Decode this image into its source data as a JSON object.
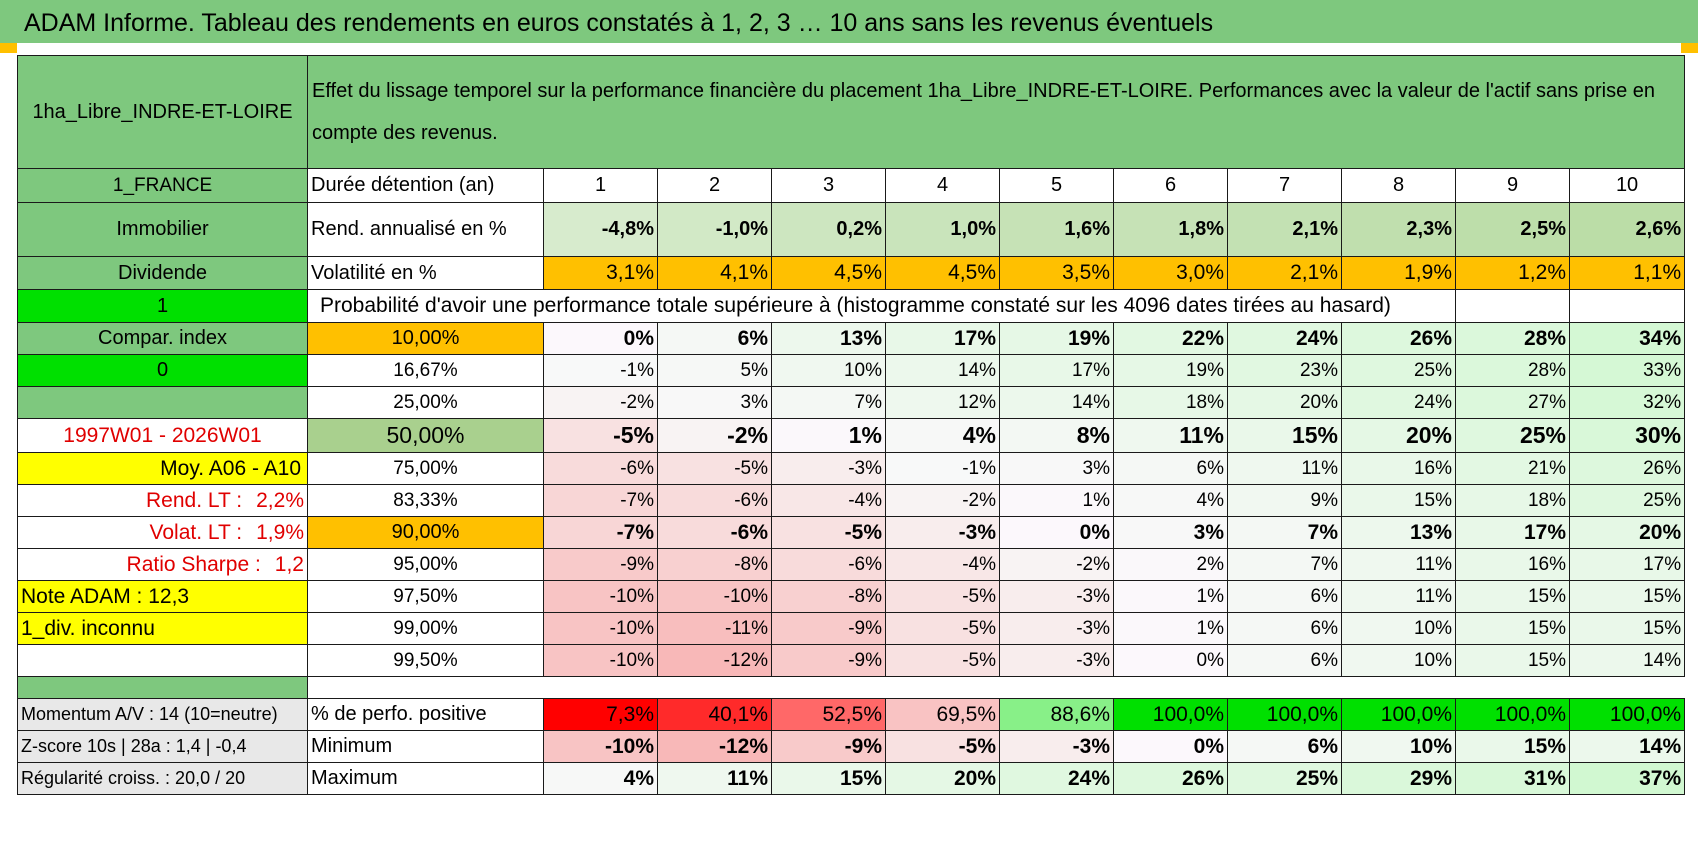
{
  "header": {
    "title": "ADAM Informe. Tableau des rendements en euros constatés à 1, 2, 3 … 10 ans sans les revenus éventuels"
  },
  "info": {
    "asset_name": "1ha_Libre_INDRE-ET-LOIRE",
    "description": "Effet du lissage temporel sur la performance financière du placement 1ha_Libre_INDRE-ET-LOIRE. Performances avec la valeur de l'actif sans prise en compte des revenus.",
    "country": "1_FRANCE",
    "category": "Immobilier",
    "dividend_label": "Dividende",
    "dividend_value": "1",
    "compar_index_label": "Compar. index",
    "compar_index_value": "0",
    "period": "1997W01 - 2026W01",
    "moy_label": "Moy. A06 - A10",
    "rend_lt_label": "Rend. LT :",
    "rend_lt_value": "2,2%",
    "volat_lt_label": "Volat. LT :",
    "volat_lt_value": "1,9%",
    "sharpe_label": "Ratio Sharpe :",
    "sharpe_value": "1,2",
    "note_adam": "Note ADAM : 12,3",
    "div_status": "1_div. inconnu",
    "momentum": "Momentum A/V : 14 (10=neutre)",
    "zscore": "Z-score 10s | 28a : 1,4 | -0,4",
    "regularite": "Régularité croiss. : 20,0 / 20"
  },
  "labels": {
    "duree": "Durée détention (an)",
    "rend": "Rend. annualisé en %",
    "volat": "Volatilité en %",
    "proba": "Probabilité d'avoir une performance totale supérieure à (histogramme constaté sur les 4096 dates tirées au hasard)",
    "pct_pos": "% de perfo. positive",
    "min": "Minimum",
    "max": "Maximum"
  },
  "years": [
    "1",
    "2",
    "3",
    "4",
    "5",
    "6",
    "7",
    "8",
    "9",
    "10"
  ],
  "rend": [
    "-4,8%",
    "-1,0%",
    "0,2%",
    "1,0%",
    "1,6%",
    "1,8%",
    "2,1%",
    "2,3%",
    "2,5%",
    "2,6%"
  ],
  "volat": [
    "3,1%",
    "4,1%",
    "4,5%",
    "4,5%",
    "3,5%",
    "3,0%",
    "2,1%",
    "1,9%",
    "1,2%",
    "1,1%"
  ],
  "percentiles": [
    {
      "p": "10,00%",
      "v": [
        "0%",
        "6%",
        "13%",
        "17%",
        "19%",
        "22%",
        "24%",
        "26%",
        "28%",
        "34%"
      ]
    },
    {
      "p": "16,67%",
      "v": [
        "-1%",
        "5%",
        "10%",
        "14%",
        "17%",
        "19%",
        "23%",
        "25%",
        "28%",
        "33%"
      ]
    },
    {
      "p": "25,00%",
      "v": [
        "-2%",
        "3%",
        "7%",
        "12%",
        "14%",
        "18%",
        "20%",
        "24%",
        "27%",
        "32%"
      ]
    },
    {
      "p": "50,00%",
      "v": [
        "-5%",
        "-2%",
        "1%",
        "4%",
        "8%",
        "11%",
        "15%",
        "20%",
        "25%",
        "30%"
      ]
    },
    {
      "p": "75,00%",
      "v": [
        "-6%",
        "-5%",
        "-3%",
        "-1%",
        "3%",
        "6%",
        "11%",
        "16%",
        "21%",
        "26%"
      ]
    },
    {
      "p": "83,33%",
      "v": [
        "-7%",
        "-6%",
        "-4%",
        "-2%",
        "1%",
        "4%",
        "9%",
        "15%",
        "18%",
        "25%"
      ]
    },
    {
      "p": "90,00%",
      "v": [
        "-7%",
        "-6%",
        "-5%",
        "-3%",
        "0%",
        "3%",
        "7%",
        "13%",
        "17%",
        "20%"
      ]
    },
    {
      "p": "95,00%",
      "v": [
        "-9%",
        "-8%",
        "-6%",
        "-4%",
        "-2%",
        "2%",
        "7%",
        "11%",
        "16%",
        "17%"
      ]
    },
    {
      "p": "97,50%",
      "v": [
        "-10%",
        "-10%",
        "-8%",
        "-5%",
        "-3%",
        "1%",
        "6%",
        "11%",
        "15%",
        "15%"
      ]
    },
    {
      "p": "99,00%",
      "v": [
        "-10%",
        "-11%",
        "-9%",
        "-5%",
        "-3%",
        "1%",
        "6%",
        "10%",
        "15%",
        "15%"
      ]
    },
    {
      "p": "99,50%",
      "v": [
        "-10%",
        "-12%",
        "-9%",
        "-5%",
        "-3%",
        "0%",
        "6%",
        "10%",
        "15%",
        "14%"
      ]
    }
  ],
  "pct_pos": [
    "7,3%",
    "40,1%",
    "52,5%",
    "69,5%",
    "88,6%",
    "100,0%",
    "100,0%",
    "100,0%",
    "100,0%",
    "100,0%"
  ],
  "minimum": [
    "-10%",
    "-12%",
    "-9%",
    "-5%",
    "-3%",
    "0%",
    "6%",
    "10%",
    "15%",
    "14%"
  ],
  "maximum": [
    "4%",
    "11%",
    "15%",
    "20%",
    "24%",
    "26%",
    "25%",
    "29%",
    "31%",
    "37%"
  ],
  "colors": {
    "header_green": "#7ec87e",
    "orange": "#ffc000",
    "yellow": "#ffff00",
    "bright_green": "#00e000",
    "pos_red_1": "#ff0000",
    "pos_red_2": "#ff3030",
    "pos_red_3": "#ff6b6b",
    "pos_pink": "#f9c7c7",
    "pos_lightgreen": "#88f088"
  }
}
